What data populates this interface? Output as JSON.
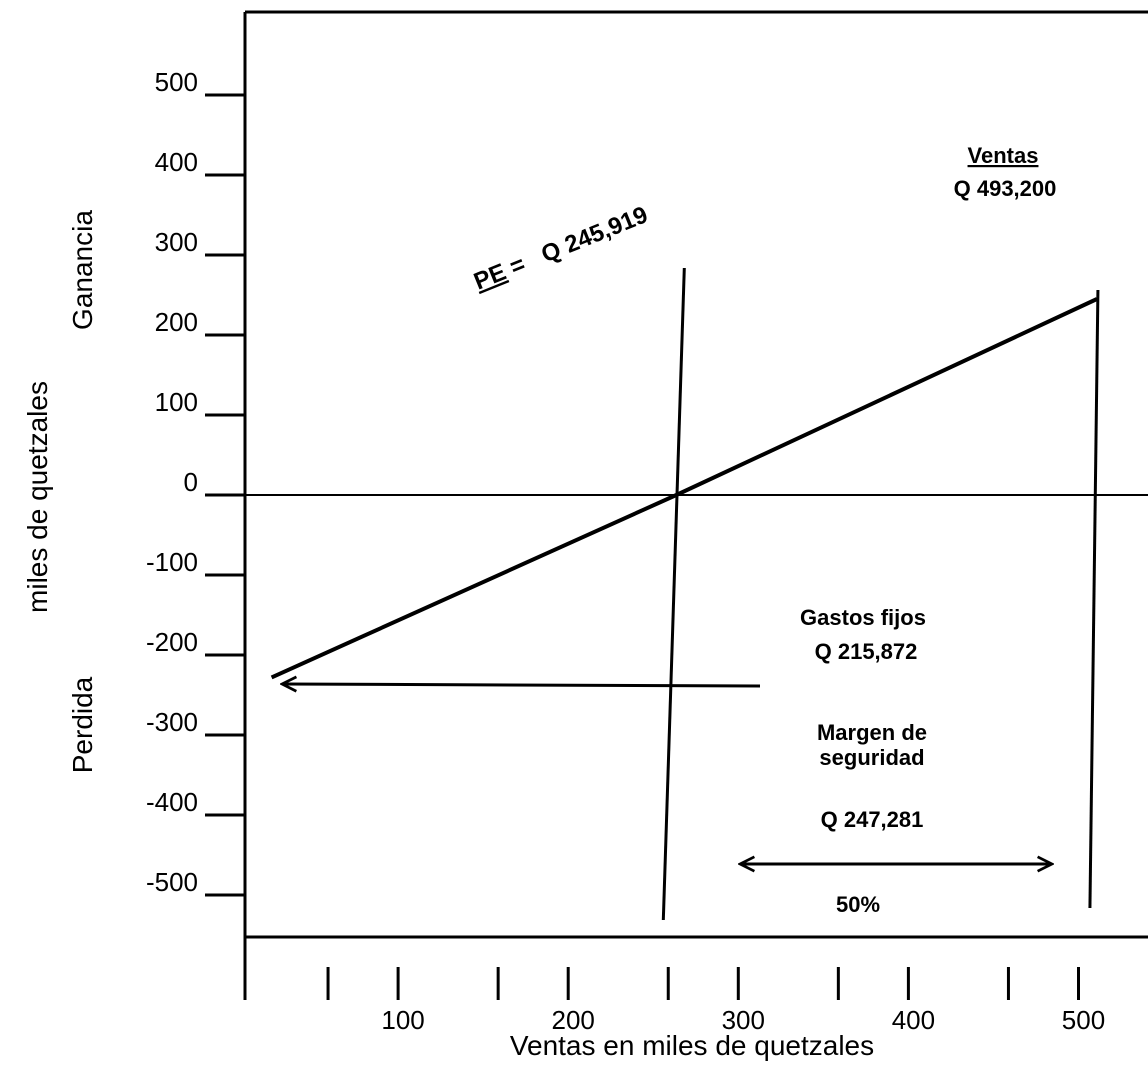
{
  "chart_data": {
    "type": "line",
    "title": "",
    "xlabel": "Ventas en miles de quetzales",
    "ylabel": "miles de quetzales",
    "ylabel_top": "Ganancia",
    "ylabel_bottom": "Perdida",
    "xlim": [
      0,
      530
    ],
    "ylim": [
      -550,
      600
    ],
    "x_ticks": [
      100,
      200,
      300,
      400,
      500
    ],
    "y_ticks": [
      500,
      400,
      300,
      200,
      100,
      0,
      -100,
      -200,
      -300,
      -400,
      -500
    ],
    "grid": false,
    "series": [
      {
        "x": [
          8,
          245.919,
          493.2
        ],
        "y": [
          -228,
          0,
          245
        ]
      }
    ],
    "break_even_x": 245.919,
    "sales_x": 493.2,
    "annotations": {
      "pe_prefix": "PE",
      "pe_value": "=   Q 245,919",
      "ventas_title": "Ventas",
      "ventas_value": "Q 493,200",
      "gastos_title": "Gastos fijos",
      "gastos_value": "Q 215,872",
      "margen_line1": "Margen de",
      "margen_line2": "seguridad",
      "margen_value": "Q 247,281",
      "margen_percent": "50%"
    }
  }
}
